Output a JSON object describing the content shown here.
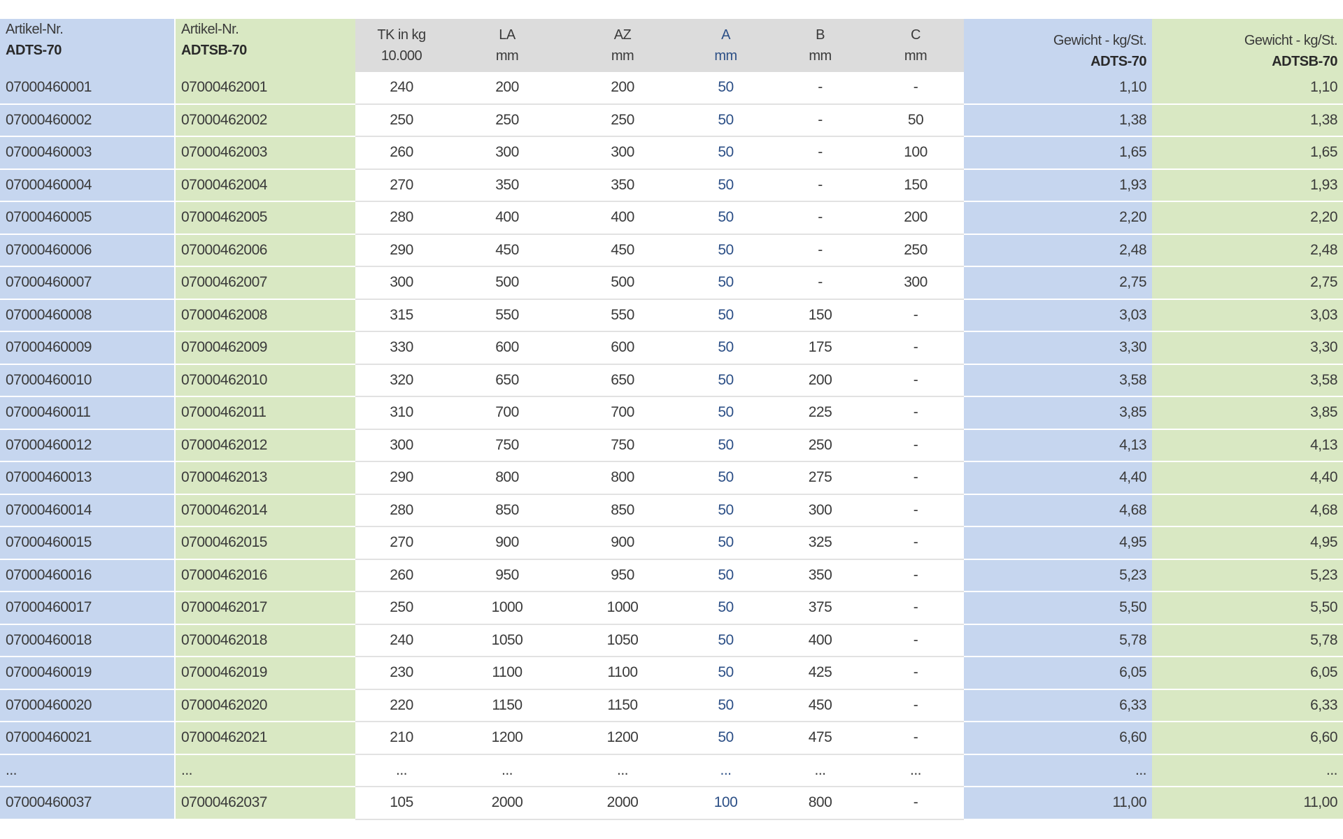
{
  "table": {
    "columns": [
      [
        "Artikel-Nr.",
        "ADTS-70"
      ],
      [
        "Artikel-Nr.",
        "ADTSB-70"
      ],
      [
        "TK in kg",
        "10.000"
      ],
      [
        "LA",
        "mm"
      ],
      [
        "AZ",
        "mm"
      ],
      [
        "A",
        "mm"
      ],
      [
        "B",
        "mm"
      ],
      [
        "C",
        "mm"
      ],
      [
        "Gewicht - kg/St.",
        "ADTS-70"
      ],
      [
        "Gewicht - kg/St.",
        "ADTSB-70"
      ]
    ],
    "rows": [
      [
        "07000460001",
        "07000462001",
        "240",
        "200",
        "200",
        "50",
        "-",
        "-",
        "1,10",
        "1,10"
      ],
      [
        "07000460002",
        "07000462002",
        "250",
        "250",
        "250",
        "50",
        "-",
        "50",
        "1,38",
        "1,38"
      ],
      [
        "07000460003",
        "07000462003",
        "260",
        "300",
        "300",
        "50",
        "-",
        "100",
        "1,65",
        "1,65"
      ],
      [
        "07000460004",
        "07000462004",
        "270",
        "350",
        "350",
        "50",
        "-",
        "150",
        "1,93",
        "1,93"
      ],
      [
        "07000460005",
        "07000462005",
        "280",
        "400",
        "400",
        "50",
        "-",
        "200",
        "2,20",
        "2,20"
      ],
      [
        "07000460006",
        "07000462006",
        "290",
        "450",
        "450",
        "50",
        "-",
        "250",
        "2,48",
        "2,48"
      ],
      [
        "07000460007",
        "07000462007",
        "300",
        "500",
        "500",
        "50",
        "-",
        "300",
        "2,75",
        "2,75"
      ],
      [
        "07000460008",
        "07000462008",
        "315",
        "550",
        "550",
        "50",
        "150",
        "-",
        "3,03",
        "3,03"
      ],
      [
        "07000460009",
        "07000462009",
        "330",
        "600",
        "600",
        "50",
        "175",
        "-",
        "3,30",
        "3,30"
      ],
      [
        "07000460010",
        "07000462010",
        "320",
        "650",
        "650",
        "50",
        "200",
        "-",
        "3,58",
        "3,58"
      ],
      [
        "07000460011",
        "07000462011",
        "310",
        "700",
        "700",
        "50",
        "225",
        "-",
        "3,85",
        "3,85"
      ],
      [
        "07000460012",
        "07000462012",
        "300",
        "750",
        "750",
        "50",
        "250",
        "-",
        "4,13",
        "4,13"
      ],
      [
        "07000460013",
        "07000462013",
        "290",
        "800",
        "800",
        "50",
        "275",
        "-",
        "4,40",
        "4,40"
      ],
      [
        "07000460014",
        "07000462014",
        "280",
        "850",
        "850",
        "50",
        "300",
        "-",
        "4,68",
        "4,68"
      ],
      [
        "07000460015",
        "07000462015",
        "270",
        "900",
        "900",
        "50",
        "325",
        "-",
        "4,95",
        "4,95"
      ],
      [
        "07000460016",
        "07000462016",
        "260",
        "950",
        "950",
        "50",
        "350",
        "-",
        "5,23",
        "5,23"
      ],
      [
        "07000460017",
        "07000462017",
        "250",
        "1000",
        "1000",
        "50",
        "375",
        "-",
        "5,50",
        "5,50"
      ],
      [
        "07000460018",
        "07000462018",
        "240",
        "1050",
        "1050",
        "50",
        "400",
        "-",
        "5,78",
        "5,78"
      ],
      [
        "07000460019",
        "07000462019",
        "230",
        "1100",
        "1100",
        "50",
        "425",
        "-",
        "6,05",
        "6,05"
      ],
      [
        "07000460020",
        "07000462020",
        "220",
        "1150",
        "1150",
        "50",
        "450",
        "-",
        "6,33",
        "6,33"
      ],
      [
        "07000460021",
        "07000462021",
        "210",
        "1200",
        "1200",
        "50",
        "475",
        "-",
        "6,60",
        "6,60"
      ],
      [
        "...",
        "...",
        "...",
        "...",
        "...",
        "...",
        "...",
        "...",
        "...",
        "..."
      ],
      [
        "07000460037",
        "07000462037",
        "105",
        "2000",
        "2000",
        "100",
        "800",
        "-",
        "11,00",
        "11,00"
      ]
    ]
  }
}
